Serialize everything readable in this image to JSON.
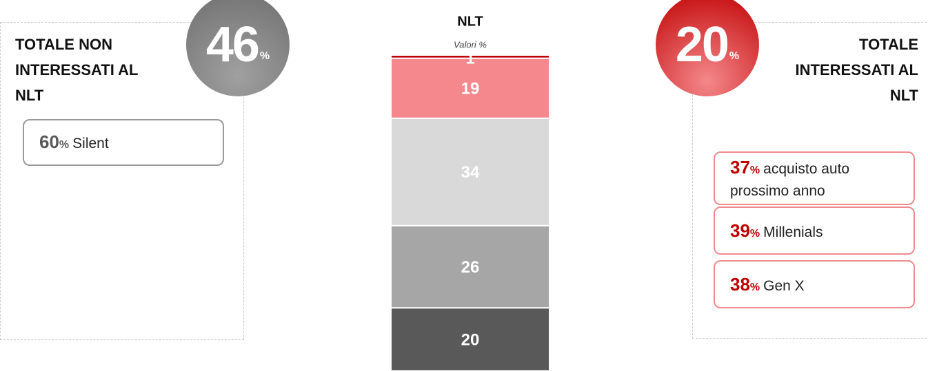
{
  "chart_data": {
    "type": "bar",
    "title": "NLT",
    "subtitle": "Valori %",
    "series": [
      {
        "color": "#595959",
        "values": [
          20
        ]
      },
      {
        "color": "#a6a6a6",
        "values": [
          26
        ]
      },
      {
        "color": "#d9d9d9",
        "values": [
          34
        ]
      },
      {
        "color": "#f4888c",
        "values": [
          19
        ]
      },
      {
        "color": "#c00000",
        "values": [
          1
        ]
      }
    ]
  },
  "left_panel": {
    "heading": "TOTALE NON INTERESSATI AL NLT",
    "circle": {
      "value": 46,
      "unit": "%"
    },
    "items": [
      {
        "value": 60,
        "unit": "%",
        "label": "Silent"
      }
    ]
  },
  "right_panel": {
    "heading": "TOTALE INTERESSATI AL NLT",
    "circle": {
      "value": 20,
      "unit": "%"
    },
    "items": [
      {
        "value": 37,
        "unit": "%",
        "label": "acquisto auto prossimo anno"
      },
      {
        "value": 39,
        "unit": "%",
        "label": "Millenials"
      },
      {
        "value": 38,
        "unit": "%",
        "label": "Gen X"
      }
    ]
  }
}
